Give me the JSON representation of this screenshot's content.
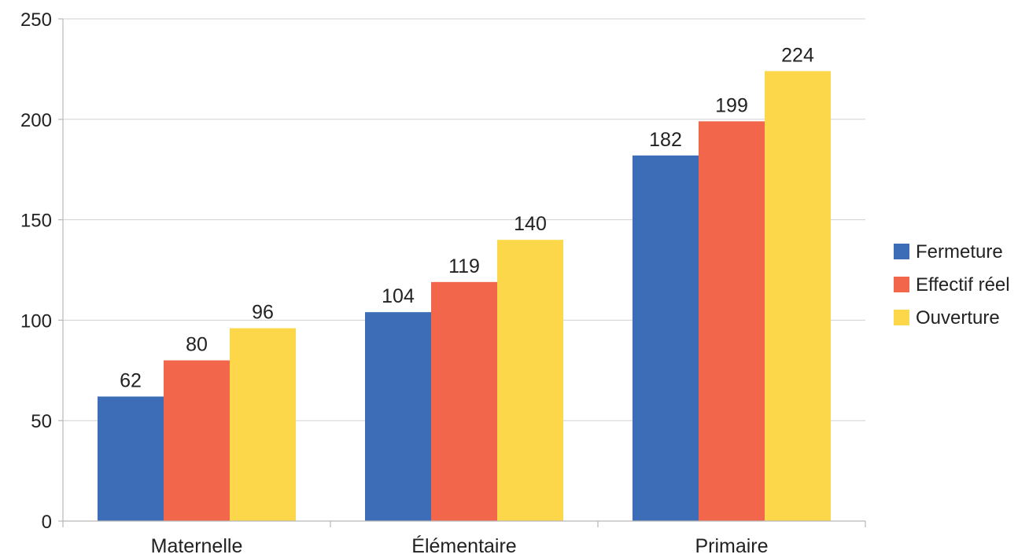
{
  "chart_data": {
    "type": "bar",
    "title": "",
    "xlabel": "",
    "ylabel": "",
    "categories": [
      "Maternelle",
      "Élémentaire",
      "Primaire"
    ],
    "series": [
      {
        "name": "Fermeture",
        "values": [
          62,
          104,
          182
        ],
        "color": "#3d6db7"
      },
      {
        "name": "Effectif réel",
        "values": [
          80,
          119,
          199
        ],
        "color": "#f2674c"
      },
      {
        "name": "Ouverture",
        "values": [
          96,
          140,
          224
        ],
        "color": "#fcd74a"
      }
    ],
    "ylim": [
      0,
      250
    ],
    "yticks": [
      0,
      50,
      100,
      150,
      200,
      250
    ],
    "grid": true,
    "legend_position": "right",
    "data_labels": true
  }
}
